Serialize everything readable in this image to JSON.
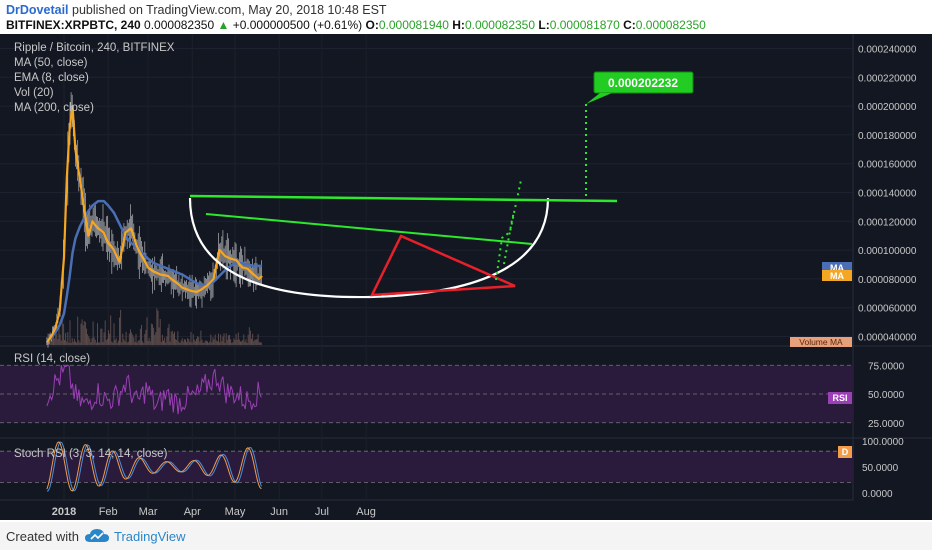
{
  "header": {
    "author": "DrDovetail",
    "published_text": "published on TradingView.com, May 20, 2018 10:48 EST",
    "symbol": "BITFINEX:XRPBTC, 240",
    "last": "0.000082350",
    "change_arrow": "▲",
    "change": "+0.000000500 (+0.61%)",
    "o_label": "O:",
    "o_value": "0.000081940",
    "h_label": "H:",
    "h_value": "0.000082350",
    "l_label": "L:",
    "l_value": "0.000081870",
    "c_label": "C:",
    "c_value": "0.000082350"
  },
  "footer": {
    "created_with": "Created with",
    "brand": "TradingView",
    "logo_icon": "cloud-logo-icon"
  },
  "colors": {
    "background": "#131722",
    "candles": "#e8e8e8",
    "ma50": "#4a6fb5",
    "ema8": "#f5a623",
    "ma200": "#d0d0d0",
    "rsi": "#9b3fb5",
    "stoch_k": "#4a90d9",
    "stoch_d": "#f39c4a",
    "trendline": "#2ee82e",
    "triangle": "#e8202a",
    "cup": "#ffffff",
    "target_box": "#22cc22"
  },
  "chart_data": [
    {
      "type": "line",
      "name": "price",
      "title": "Ripple / Bitcoin, 240, BITFINEX",
      "legend": [
        "MA (50, close)",
        "EMA (8, close)",
        "Vol (20)",
        "MA (200, close)"
      ],
      "x": [
        "2017-12-20",
        "2017-12-23",
        "2017-12-26",
        "2017-12-29",
        "2018-01-01",
        "2018-01-03",
        "2018-01-05",
        "2018-01-07",
        "2018-01-09",
        "2018-01-12",
        "2018-01-15",
        "2018-01-18",
        "2018-01-21",
        "2018-01-25",
        "2018-01-29",
        "2018-02-01",
        "2018-02-05",
        "2018-02-09",
        "2018-02-13",
        "2018-02-17",
        "2018-02-21",
        "2018-02-25",
        "2018-03-01",
        "2018-03-05",
        "2018-03-10",
        "2018-03-15",
        "2018-03-20",
        "2018-03-25",
        "2018-03-30",
        "2018-04-04",
        "2018-04-08",
        "2018-04-12",
        "2018-04-16",
        "2018-04-20",
        "2018-04-24",
        "2018-04-28",
        "2018-05-02",
        "2018-05-06",
        "2018-05-10",
        "2018-05-14",
        "2018-05-18",
        "2018-05-20"
      ],
      "series": [
        {
          "name": "EMA (8, close)",
          "values": [
            3.6e-05,
            4e-05,
            4.6e-05,
            5.8e-05,
            9.5e-05,
            0.00015,
            0.000185,
            0.0002,
            0.00017,
            0.00015,
            0.00013,
            0.00011,
            0.00012,
            0.000115,
            0.000112,
            0.000105,
            0.0001,
            9.2e-05,
            0.000112,
            0.000115,
            0.000103,
            9.5e-05,
            8.8e-05,
            8.5e-05,
            8.3e-05,
            8.2e-05,
            7.8e-05,
            7.4e-05,
            7.2e-05,
            7.1e-05,
            7.3e-05,
            7.6e-05,
            8e-05,
            0.0001,
            9.6e-05,
            9.4e-05,
            9.3e-05,
            8.8e-05,
            8.7e-05,
            8.3e-05,
            8e-05,
            8.2e-05
          ]
        },
        {
          "name": "MA (50, close)",
          "values": [
            3.7e-05,
            3.9e-05,
            4.3e-05,
            4.8e-05,
            5.6e-05,
            6.8e-05,
            8.2e-05,
            9.8e-05,
            0.000108,
            0.000116,
            0.000122,
            0.000127,
            0.000131,
            0.000134,
            0.000134,
            0.000131,
            0.000126,
            0.000118,
            0.00011,
            0.000105,
            0.000102,
            9.8e-05,
            9.4e-05,
            9.1e-05,
            8.9e-05,
            8.7e-05,
            8.5e-05,
            8.3e-05,
            8e-05,
            7.7e-05,
            7.6e-05,
            7.6e-05,
            7.8e-05,
            8.2e-05,
            8.6e-05,
            8.9e-05,
            9.1e-05,
            9.1e-05,
            9e-05,
            8.9e-05,
            8.9e-05,
            8.9e-05
          ]
        }
      ],
      "ylim": [
        3.2e-05,
        0.00025
      ],
      "yticks": [
        "0.000240000",
        "0.000220000",
        "0.000200000",
        "0.000180000",
        "0.000160000",
        "0.000140000",
        "0.000120000",
        "0.000100000",
        "0.000080000",
        "0.000060000",
        "0.000040000"
      ],
      "xticks": [
        "2018",
        "Feb",
        "Mar",
        "Apr",
        "May",
        "Jun",
        "Jul",
        "Aug"
      ],
      "annotations": {
        "target_label": "0.000202232",
        "ma_tag": "MA",
        "volume_ma": "Volume MA"
      }
    },
    {
      "type": "line",
      "name": "rsi",
      "title": "RSI (14, close)",
      "tag": "RSI",
      "x": [
        "2017-12-20",
        "2017-12-27",
        "2018-01-03",
        "2018-01-10",
        "2018-01-17",
        "2018-01-24",
        "2018-01-31",
        "2018-02-07",
        "2018-02-14",
        "2018-02-21",
        "2018-02-28",
        "2018-03-07",
        "2018-03-14",
        "2018-03-21",
        "2018-03-28",
        "2018-04-04",
        "2018-04-11",
        "2018-04-18",
        "2018-04-25",
        "2018-05-02",
        "2018-05-09",
        "2018-05-16",
        "2018-05-20"
      ],
      "values": [
        48,
        62,
        70,
        45,
        40,
        52,
        44,
        48,
        60,
        42,
        55,
        38,
        50,
        42,
        46,
        48,
        58,
        66,
        52,
        50,
        44,
        50,
        50
      ],
      "yticks": [
        "75.0000",
        "50.0000",
        "25.0000"
      ],
      "ylim": [
        10,
        90
      ]
    },
    {
      "type": "line",
      "name": "stoch_rsi",
      "title": "Stoch RSI (3, 3, 14, 14, close)",
      "tag": "D",
      "x": [
        "2017-12-20",
        "2017-12-27",
        "2018-01-03",
        "2018-01-10",
        "2018-01-17",
        "2018-01-24",
        "2018-01-31",
        "2018-02-07",
        "2018-02-14",
        "2018-02-21",
        "2018-02-28",
        "2018-03-07",
        "2018-03-14",
        "2018-03-21",
        "2018-03-28",
        "2018-04-04",
        "2018-04-11",
        "2018-04-18",
        "2018-04-25",
        "2018-05-02",
        "2018-05-09",
        "2018-05-16",
        "2018-05-20"
      ],
      "series": [
        {
          "name": "K",
          "values": [
            20,
            90,
            10,
            85,
            15,
            95,
            5,
            80,
            20,
            90,
            10,
            88,
            12,
            92,
            8,
            85,
            30,
            95,
            10,
            90,
            20,
            85,
            95
          ]
        },
        {
          "name": "D",
          "values": [
            30,
            70,
            30,
            70,
            30,
            75,
            25,
            65,
            35,
            75,
            25,
            72,
            28,
            75,
            22,
            70,
            40,
            80,
            25,
            75,
            30,
            70,
            85
          ]
        }
      ],
      "yticks": [
        "100.0000",
        "50.0000",
        "0.0000"
      ],
      "ylim": [
        -10,
        105
      ]
    }
  ]
}
